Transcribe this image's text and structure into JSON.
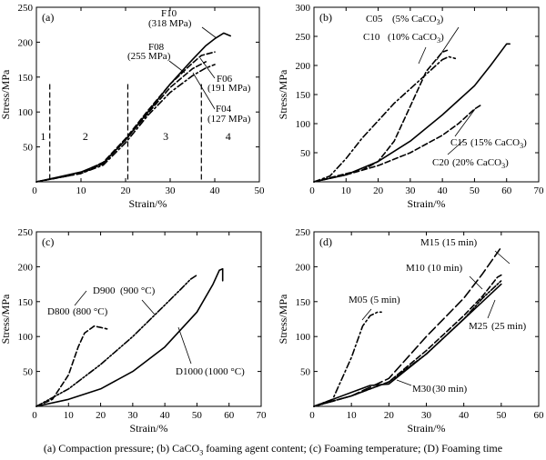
{
  "caption": {
    "text_before_sub": "(a) Compaction pressure; (b) CaCO",
    "sub": "3",
    "text_after_sub": " foaming agent content; (c) Foaming temperature; (D) Foaming time"
  },
  "chart_data": [
    {
      "type": "line",
      "panel_label": "(a)",
      "xlabel": "Strain/%",
      "ylabel": "Stress/MPa",
      "xlim": [
        0,
        50
      ],
      "ylim": [
        0,
        250
      ],
      "xticks": [
        10,
        20,
        30,
        40,
        50
      ],
      "yticks": [
        50,
        100,
        150,
        200,
        250
      ],
      "grid": false,
      "region_dividers_x": [
        3,
        20.5,
        37
      ],
      "region_labels": [
        "1",
        "2",
        "3",
        "4"
      ],
      "series": [
        {
          "name": "F10",
          "annotation": "(318 MPa)",
          "style": "solid",
          "x": [
            0,
            5,
            10,
            15,
            20,
            25,
            30,
            35,
            38,
            40,
            42,
            43.5
          ],
          "y": [
            0,
            7,
            14,
            27,
            60,
            100,
            140,
            175,
            195,
            205,
            213,
            209
          ]
        },
        {
          "name": "F08",
          "annotation": "(255 MPa)",
          "style": "dashed",
          "x": [
            0,
            5,
            10,
            15,
            20,
            25,
            30,
            35,
            37,
            40
          ],
          "y": [
            0,
            6,
            13,
            28,
            62,
            102,
            140,
            170,
            181,
            186
          ]
        },
        {
          "name": "F06",
          "annotation": "(191 MPa)",
          "style": "dashed",
          "x": [
            0,
            5,
            10,
            15,
            20,
            25,
            30,
            35,
            38
          ],
          "y": [
            0,
            6,
            12,
            26,
            60,
            98,
            135,
            162,
            172
          ]
        },
        {
          "name": "F04",
          "annotation": "(127 MPa)",
          "style": "dashdot",
          "x": [
            0,
            5,
            10,
            15,
            20,
            25,
            30,
            35,
            38,
            40
          ],
          "y": [
            0,
            6,
            12,
            24,
            56,
            95,
            128,
            152,
            163,
            168
          ]
        }
      ]
    },
    {
      "type": "line",
      "panel_label": "(b)",
      "xlabel": "Strain/%",
      "ylabel": "Stress/MPa",
      "xlim": [
        0,
        70
      ],
      "ylim": [
        0,
        300
      ],
      "xticks": [
        10,
        20,
        30,
        40,
        50,
        60,
        70
      ],
      "yticks": [
        50,
        100,
        150,
        200,
        250,
        300
      ],
      "grid": false,
      "series": [
        {
          "name": "C05",
          "annotation": "(5% CaCO",
          "annotation_sub": "3",
          "annotation_end": ")",
          "style": "dashed",
          "x": [
            0,
            5,
            10,
            15,
            20,
            25,
            30,
            35,
            40,
            41.5
          ],
          "y": [
            0,
            7,
            14,
            20,
            35,
            70,
            130,
            190,
            223,
            226
          ]
        },
        {
          "name": "C10",
          "annotation": "(10% CaCO",
          "annotation_sub": "3",
          "annotation_end": ")",
          "style": "dashdot",
          "x": [
            0,
            5,
            10,
            15,
            20,
            25,
            30,
            35,
            40,
            42,
            44
          ],
          "y": [
            0,
            10,
            40,
            75,
            105,
            135,
            160,
            185,
            210,
            215,
            212
          ]
        },
        {
          "name": "C15",
          "annotation": "(15% CaCO",
          "annotation_sub": "3",
          "annotation_end": ")",
          "style": "solid",
          "x": [
            0,
            10,
            20,
            30,
            40,
            50,
            55,
            60,
            61
          ],
          "y": [
            0,
            12,
            35,
            70,
            115,
            165,
            200,
            237,
            237
          ]
        },
        {
          "name": "C20",
          "annotation": "(20% CaCO",
          "annotation_sub": "3",
          "annotation_end": ")",
          "style": "dashed",
          "x": [
            0,
            10,
            20,
            30,
            40,
            45,
            50,
            52
          ],
          "y": [
            0,
            12,
            28,
            50,
            80,
            100,
            125,
            132
          ]
        }
      ]
    },
    {
      "type": "line",
      "panel_label": "(c)",
      "xlabel": "Strain/%",
      "ylabel": "Stress/MPa",
      "xlim": [
        0,
        70
      ],
      "ylim": [
        0,
        250
      ],
      "xticks": [
        10,
        20,
        30,
        40,
        50,
        60,
        70
      ],
      "yticks": [
        50,
        100,
        150,
        200,
        250
      ],
      "grid": false,
      "series": [
        {
          "name": "D800",
          "annotation": "(800 °C)",
          "style": "dashed",
          "x": [
            0,
            5,
            10,
            13,
            15,
            18,
            20,
            22
          ],
          "y": [
            0,
            10,
            45,
            85,
            105,
            115,
            113,
            111
          ]
        },
        {
          "name": "D900",
          "annotation": "(900 °C)",
          "style": "dashdotdot",
          "x": [
            0,
            10,
            20,
            30,
            40,
            45,
            48,
            50
          ],
          "y": [
            0,
            25,
            60,
            100,
            145,
            168,
            182,
            188
          ]
        },
        {
          "name": "D1000",
          "annotation": "(1000 °C)",
          "style": "solid",
          "x": [
            0,
            10,
            20,
            30,
            40,
            50,
            55,
            57,
            58,
            58
          ],
          "y": [
            0,
            10,
            25,
            50,
            85,
            135,
            175,
            195,
            197,
            180
          ]
        }
      ]
    },
    {
      "type": "line",
      "panel_label": "(d)",
      "xlabel": "Strain/%",
      "ylabel": "Stress/MPa",
      "xlim": [
        0,
        60
      ],
      "ylim": [
        0,
        250
      ],
      "xticks": [
        10,
        20,
        30,
        40,
        50,
        60
      ],
      "yticks": [
        50,
        100,
        150,
        200,
        250
      ],
      "grid": false,
      "series": [
        {
          "name": "M05",
          "annotation": "(5 min)",
          "style": "dashdot",
          "x": [
            0,
            5,
            10,
            13,
            15,
            17,
            18
          ],
          "y": [
            0,
            10,
            70,
            115,
            130,
            135,
            135
          ]
        },
        {
          "name": "M10",
          "annotation": "(10 min)",
          "style": "dashed",
          "x": [
            0,
            10,
            20,
            30,
            40,
            45,
            49,
            50
          ],
          "y": [
            0,
            15,
            35,
            80,
            130,
            158,
            185,
            188
          ]
        },
        {
          "name": "M15",
          "annotation": "(15 min)",
          "style": "longdash",
          "x": [
            0,
            10,
            20,
            30,
            40,
            45,
            50
          ],
          "y": [
            0,
            15,
            40,
            100,
            155,
            190,
            228
          ]
        },
        {
          "name": "M25",
          "annotation": "(25 min)",
          "style": "dashdotdot",
          "x": [
            0,
            10,
            20,
            30,
            40,
            45,
            50
          ],
          "y": [
            0,
            15,
            35,
            75,
            125,
            155,
            180
          ]
        },
        {
          "name": "M30",
          "annotation": "(30 min)",
          "style": "solid",
          "x": [
            0,
            10,
            15,
            20,
            30,
            40,
            45,
            50
          ],
          "y": [
            0,
            20,
            30,
            32,
            75,
            125,
            150,
            175
          ]
        }
      ]
    }
  ]
}
